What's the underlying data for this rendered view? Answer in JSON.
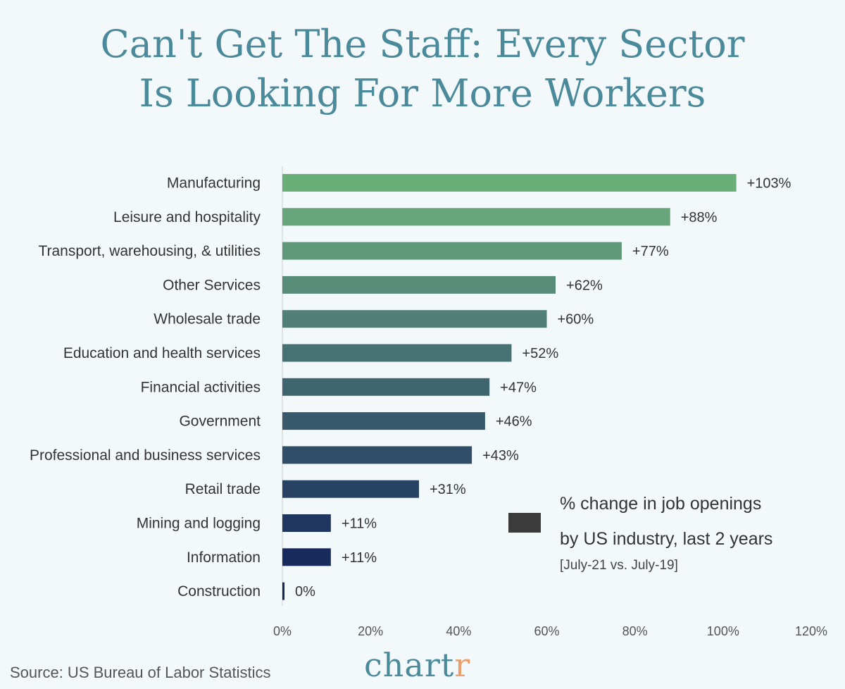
{
  "title": {
    "line1": "Can't Get The Staff: Every Sector",
    "line2": "Is Looking For More Workers"
  },
  "chart_data": {
    "type": "bar",
    "orientation": "horizontal",
    "categories": [
      "Manufacturing",
      "Leisure and hospitality",
      "Transport, warehousing, & utilities",
      "Other Services",
      "Wholesale trade",
      "Education and health services",
      "Financial activities",
      "Government",
      "Professional and business services",
      "Retail trade",
      "Mining and logging",
      "Information",
      "Construction"
    ],
    "values": [
      103,
      88,
      77,
      62,
      60,
      52,
      47,
      46,
      43,
      31,
      11,
      11,
      0
    ],
    "value_labels": [
      "+103%",
      "+88%",
      "+77%",
      "+62%",
      "+60%",
      "+52%",
      "+47%",
      "+46%",
      "+43%",
      "+31%",
      "+11%",
      "+11%",
      "0%"
    ],
    "bar_colors": [
      "#6aaf78",
      "#66a67a",
      "#5f997a",
      "#578c79",
      "#4f7f77",
      "#467274",
      "#3e6570",
      "#37596b",
      "#304e67",
      "#284263",
      "#1f3660",
      "#172b5c",
      "#14265a"
    ],
    "x_ticks": [
      "0%",
      "20%",
      "40%",
      "60%",
      "80%",
      "100%",
      "120%"
    ],
    "xlim": [
      0,
      120
    ],
    "grid": false
  },
  "legend": {
    "line1": "% change in job openings",
    "line2": "by US industry, last 2 years",
    "note": "[July-21 vs. July-19]",
    "swatch_color": "#3b3b3b"
  },
  "source": "Source: US Bureau of Labor Statistics",
  "logo": {
    "main": "chart",
    "accent": "r"
  }
}
